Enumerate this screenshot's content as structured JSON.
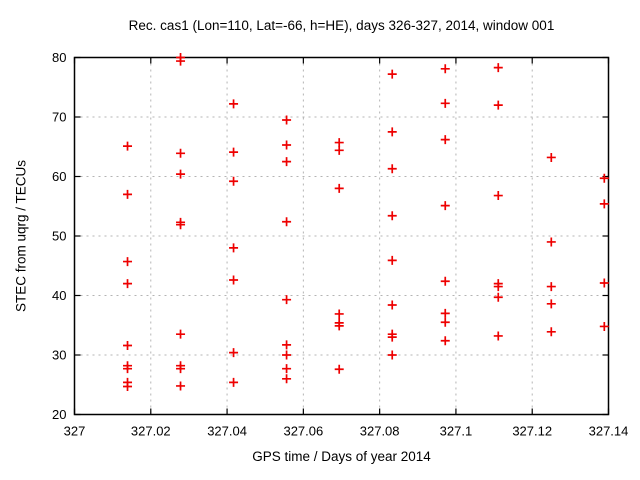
{
  "chart_data": {
    "type": "scatter",
    "title": "Rec. cas1 (Lon=110, Lat=-66, h=HE), days 326-327, 2014, window 001",
    "xlabel": "GPS time / Days of year 2014",
    "ylabel": "STEC from uqrg / TECUs",
    "xlim": [
      327.0,
      327.14
    ],
    "ylim": [
      20,
      80
    ],
    "xticks": {
      "values": [
        327.0,
        327.02,
        327.04,
        327.06,
        327.08,
        327.1,
        327.12,
        327.14
      ],
      "labels": [
        "327",
        "327.02",
        "327.04",
        "327.06",
        "327.08",
        "327.1",
        "327.12",
        "327.14"
      ]
    },
    "yticks": {
      "values": [
        20,
        30,
        40,
        50,
        60,
        70,
        80
      ],
      "labels": [
        "20",
        "30",
        "40",
        "50",
        "60",
        "70",
        "80"
      ]
    },
    "grid": true,
    "legend": "none",
    "marker": {
      "shape": "plus",
      "color": "#ee0000",
      "size": 9
    },
    "series": [
      {
        "name": "STEC from uqrg",
        "color": "#ee0000",
        "points": [
          [
            327.0139,
            65.1
          ],
          [
            327.0139,
            57.0
          ],
          [
            327.0139,
            45.7
          ],
          [
            327.0139,
            42.0
          ],
          [
            327.0139,
            31.6
          ],
          [
            327.0139,
            28.2
          ],
          [
            327.0139,
            27.7
          ],
          [
            327.0139,
            25.4
          ],
          [
            327.0139,
            24.7
          ],
          [
            327.0278,
            80.0
          ],
          [
            327.0278,
            79.4
          ],
          [
            327.0278,
            63.9
          ],
          [
            327.0278,
            60.4
          ],
          [
            327.0278,
            52.3
          ],
          [
            327.0278,
            51.9
          ],
          [
            327.0278,
            33.5
          ],
          [
            327.0278,
            28.2
          ],
          [
            327.0278,
            27.7
          ],
          [
            327.0278,
            24.8
          ],
          [
            327.0417,
            72.2
          ],
          [
            327.0417,
            64.1
          ],
          [
            327.0417,
            59.2
          ],
          [
            327.0417,
            48.0
          ],
          [
            327.0417,
            42.6
          ],
          [
            327.0417,
            30.4
          ],
          [
            327.0417,
            25.4
          ],
          [
            327.0556,
            69.5
          ],
          [
            327.0556,
            65.3
          ],
          [
            327.0556,
            62.5
          ],
          [
            327.0556,
            52.4
          ],
          [
            327.0556,
            39.3
          ],
          [
            327.0556,
            31.7
          ],
          [
            327.0556,
            30.0
          ],
          [
            327.0556,
            27.7
          ],
          [
            327.0556,
            26.0
          ],
          [
            327.0694,
            65.7
          ],
          [
            327.0694,
            64.4
          ],
          [
            327.0694,
            58.0
          ],
          [
            327.0694,
            36.9
          ],
          [
            327.0694,
            35.4
          ],
          [
            327.0694,
            34.9
          ],
          [
            327.0694,
            27.6
          ],
          [
            327.0833,
            77.2
          ],
          [
            327.0833,
            67.5
          ],
          [
            327.0833,
            61.3
          ],
          [
            327.0833,
            53.4
          ],
          [
            327.0833,
            45.9
          ],
          [
            327.0833,
            38.4
          ],
          [
            327.0833,
            33.5
          ],
          [
            327.0833,
            33.0
          ],
          [
            327.0833,
            30.0
          ],
          [
            327.0972,
            78.1
          ],
          [
            327.0972,
            72.3
          ],
          [
            327.0972,
            66.2
          ],
          [
            327.0972,
            55.1
          ],
          [
            327.0972,
            42.4
          ],
          [
            327.0972,
            37.0
          ],
          [
            327.0972,
            35.5
          ],
          [
            327.0972,
            32.4
          ],
          [
            327.1111,
            78.3
          ],
          [
            327.1111,
            72.0
          ],
          [
            327.1111,
            56.8
          ],
          [
            327.1111,
            42.0
          ],
          [
            327.1111,
            41.5
          ],
          [
            327.1111,
            39.7
          ],
          [
            327.1111,
            33.2
          ],
          [
            327.125,
            63.2
          ],
          [
            327.125,
            49.0
          ],
          [
            327.125,
            41.5
          ],
          [
            327.125,
            38.6
          ],
          [
            327.125,
            33.9
          ],
          [
            327.1389,
            59.7
          ],
          [
            327.1389,
            55.4
          ],
          [
            327.1389,
            42.1
          ],
          [
            327.1389,
            34.8
          ]
        ]
      }
    ]
  },
  "style": {
    "background": "#ffffff",
    "border_color": "#000000",
    "grid_color": "#b4b4b4",
    "text_color": "#000000",
    "marker_color": "#ee0000"
  }
}
